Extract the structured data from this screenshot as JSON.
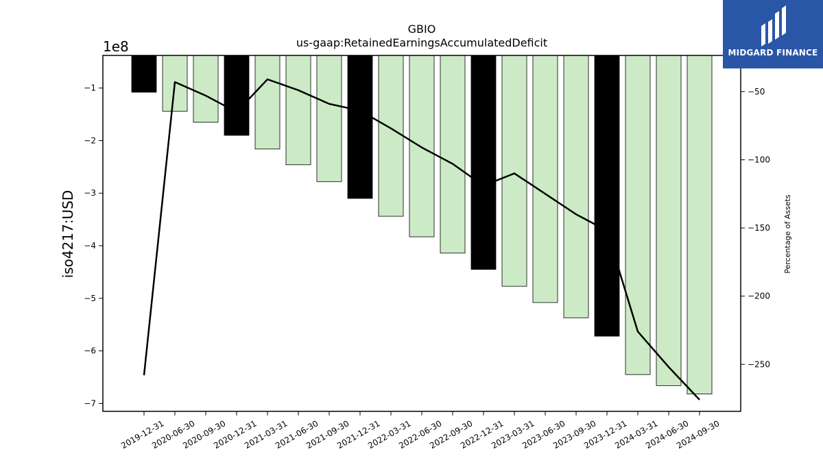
{
  "chart_data": {
    "type": "bar",
    "title": "GBIO",
    "subtitle": "us-gaap:RetainedEarningsAccumulatedDeficit",
    "ylabel": "iso4217:USD",
    "y_offset_label": "1e8",
    "y2label": "Percentage of Assets",
    "categories": [
      "2019-12-31",
      "2020-06-30",
      "2020-09-30",
      "2020-12-31",
      "2021-03-31",
      "2021-06-30",
      "2021-09-30",
      "2021-12-31",
      "2022-03-31",
      "2022-06-30",
      "2022-09-30",
      "2022-12-31",
      "2023-03-31",
      "2023-06-30",
      "2023-09-30",
      "2023-12-31",
      "2024-03-31",
      "2024-06-30",
      "2024-09-30"
    ],
    "series": [
      {
        "type": "bar",
        "axis": "left",
        "values": [
          -1.08,
          -1.44,
          -1.65,
          -1.9,
          -2.16,
          -2.46,
          -2.78,
          -3.1,
          -3.44,
          -3.83,
          -4.14,
          -4.45,
          -4.77,
          -5.08,
          -5.37,
          -5.72,
          -6.45,
          -6.66,
          -6.82
        ],
        "annual_flags": [
          true,
          false,
          false,
          true,
          false,
          false,
          false,
          true,
          false,
          false,
          false,
          true,
          false,
          false,
          false,
          true,
          false,
          false,
          false
        ]
      },
      {
        "type": "line",
        "axis": "right",
        "values": [
          -258,
          -43,
          -53,
          -65,
          -41,
          -49,
          -59,
          -64,
          -77,
          -91,
          -103,
          -119,
          -110,
          -125,
          -140,
          -152,
          -226,
          -252,
          -276
        ]
      }
    ],
    "ylim": [
      -7.15,
      -0.38
    ],
    "y_ticks": [
      -1,
      -2,
      -3,
      -4,
      -5,
      -6,
      -7
    ],
    "y2lim": [
      -284.5,
      -23.5
    ],
    "y2_ticks": [
      -50,
      -100,
      -150,
      -200,
      -250
    ],
    "colors": {
      "annual_bar": "#000000",
      "quarter_bar": "#cdeac7",
      "bar_edge": "#000000",
      "line": "#000000"
    }
  },
  "logo": {
    "text": "MIDGARD FINANCE",
    "color": "#2a56a8"
  }
}
